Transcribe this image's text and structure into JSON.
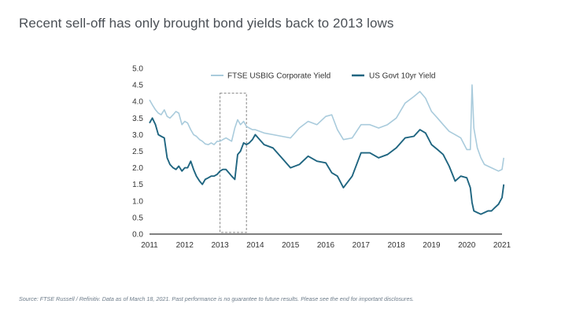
{
  "headline": "Recent sell-off has only brought bond yields back to 2013 lows",
  "footnote": "Source: FTSE Russell / Refinitiv. Data as of March 18, 2021. Past performance is no guarantee to future results. Please see the end for important disclosures.",
  "colors": {
    "corporate": "#a9cbdc",
    "govt": "#1f6580",
    "axis": "#333333",
    "highlight_box": "#888888"
  },
  "chart_data": {
    "type": "line",
    "title": "Recent sell-off has only brought bond yields back to 2013 lows",
    "xlabel": "",
    "ylabel": "",
    "xlim": [
      2011.0,
      2021.0
    ],
    "ylim": [
      0.0,
      5.0
    ],
    "x_ticks": [
      "2011",
      "2012",
      "2013",
      "2014",
      "2015",
      "2016",
      "2017",
      "2018",
      "2019",
      "2020",
      "2021"
    ],
    "y_ticks": [
      "0.0",
      "0.5",
      "1.0",
      "1.5",
      "2.0",
      "2.5",
      "3.0",
      "3.5",
      "4.0",
      "4.5",
      "5.0"
    ],
    "legend_position": "top",
    "grid": false,
    "highlight_region": {
      "x_start": 2013.0,
      "x_end": 2013.75,
      "y_start": 0.05,
      "y_end": 4.25
    },
    "series": [
      {
        "name": "FTSE USBIG Corporate Yield",
        "x": [
          2011.0,
          2011.08,
          2011.17,
          2011.25,
          2011.33,
          2011.42,
          2011.5,
          2011.58,
          2011.67,
          2011.75,
          2011.83,
          2011.92,
          2012.0,
          2012.08,
          2012.17,
          2012.25,
          2012.33,
          2012.42,
          2012.5,
          2012.58,
          2012.67,
          2012.75,
          2012.83,
          2012.92,
          2013.0,
          2013.08,
          2013.17,
          2013.25,
          2013.33,
          2013.42,
          2013.5,
          2013.58,
          2013.67,
          2013.75,
          2013.83,
          2013.92,
          2014.0,
          2014.25,
          2014.5,
          2014.75,
          2015.0,
          2015.25,
          2015.5,
          2015.75,
          2016.0,
          2016.17,
          2016.33,
          2016.5,
          2016.75,
          2017.0,
          2017.25,
          2017.5,
          2017.75,
          2018.0,
          2018.25,
          2018.5,
          2018.67,
          2018.83,
          2019.0,
          2019.17,
          2019.33,
          2019.5,
          2019.67,
          2019.83,
          2020.0,
          2020.1,
          2020.15,
          2020.2,
          2020.3,
          2020.4,
          2020.5,
          2020.6,
          2020.7,
          2020.8,
          2020.9,
          2021.0,
          2021.05
        ],
        "y": [
          4.05,
          3.9,
          3.75,
          3.65,
          3.6,
          3.75,
          3.55,
          3.5,
          3.6,
          3.7,
          3.65,
          3.3,
          3.4,
          3.35,
          3.15,
          3.0,
          2.95,
          2.85,
          2.8,
          2.72,
          2.7,
          2.75,
          2.7,
          2.8,
          2.8,
          2.85,
          2.9,
          2.85,
          2.8,
          3.2,
          3.45,
          3.3,
          3.4,
          3.25,
          3.2,
          3.15,
          3.15,
          3.05,
          3.0,
          2.95,
          2.9,
          3.2,
          3.4,
          3.3,
          3.55,
          3.6,
          3.15,
          2.85,
          2.9,
          3.3,
          3.3,
          3.2,
          3.3,
          3.5,
          3.95,
          4.15,
          4.3,
          4.1,
          3.7,
          3.5,
          3.3,
          3.1,
          3.0,
          2.9,
          2.55,
          2.55,
          4.5,
          3.2,
          2.6,
          2.3,
          2.1,
          2.05,
          2.0,
          1.95,
          1.9,
          1.95,
          2.3
        ]
      },
      {
        "name": "US Govt 10yr Yield",
        "x": [
          2011.0,
          2011.08,
          2011.17,
          2011.25,
          2011.33,
          2011.42,
          2011.5,
          2011.58,
          2011.67,
          2011.75,
          2011.83,
          2011.92,
          2012.0,
          2012.08,
          2012.17,
          2012.25,
          2012.33,
          2012.42,
          2012.5,
          2012.58,
          2012.67,
          2012.75,
          2012.83,
          2012.92,
          2013.0,
          2013.08,
          2013.17,
          2013.25,
          2013.33,
          2013.42,
          2013.5,
          2013.58,
          2013.67,
          2013.75,
          2013.83,
          2013.92,
          2014.0,
          2014.25,
          2014.5,
          2014.75,
          2015.0,
          2015.25,
          2015.5,
          2015.75,
          2016.0,
          2016.17,
          2016.33,
          2016.5,
          2016.75,
          2017.0,
          2017.25,
          2017.5,
          2017.75,
          2018.0,
          2018.25,
          2018.5,
          2018.67,
          2018.83,
          2019.0,
          2019.17,
          2019.33,
          2019.5,
          2019.67,
          2019.83,
          2020.0,
          2020.1,
          2020.15,
          2020.2,
          2020.3,
          2020.4,
          2020.5,
          2020.6,
          2020.7,
          2020.8,
          2020.9,
          2021.0,
          2021.05
        ],
        "y": [
          3.35,
          3.5,
          3.3,
          3.0,
          2.95,
          2.9,
          2.3,
          2.1,
          2.0,
          1.95,
          2.05,
          1.9,
          2.0,
          2.0,
          2.2,
          1.95,
          1.75,
          1.6,
          1.5,
          1.65,
          1.7,
          1.75,
          1.75,
          1.8,
          1.9,
          1.95,
          1.95,
          1.85,
          1.75,
          1.65,
          2.4,
          2.5,
          2.75,
          2.7,
          2.75,
          2.85,
          3.0,
          2.7,
          2.6,
          2.3,
          2.0,
          2.1,
          2.35,
          2.2,
          2.15,
          1.85,
          1.75,
          1.4,
          1.75,
          2.45,
          2.45,
          2.3,
          2.4,
          2.6,
          2.9,
          2.95,
          3.15,
          3.05,
          2.7,
          2.55,
          2.4,
          2.05,
          1.6,
          1.75,
          1.7,
          1.4,
          0.95,
          0.7,
          0.65,
          0.6,
          0.65,
          0.7,
          0.7,
          0.8,
          0.9,
          1.1,
          1.5
        ]
      }
    ]
  }
}
